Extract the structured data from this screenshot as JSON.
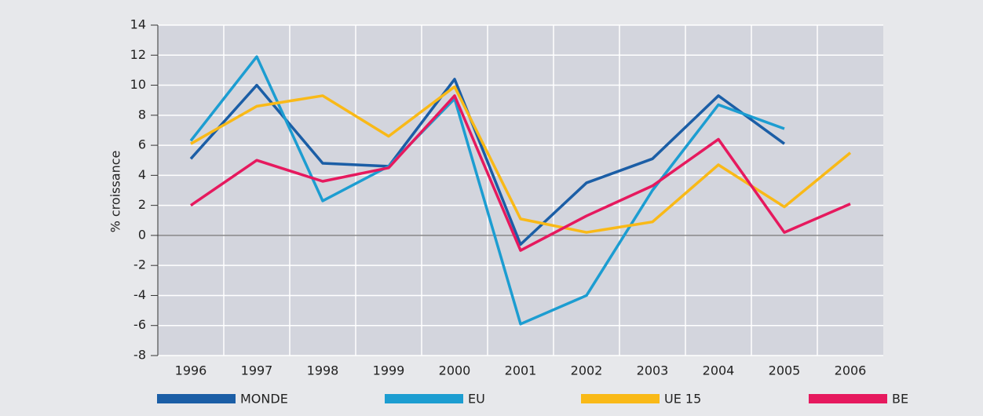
{
  "chart_data": {
    "type": "line",
    "y_label": "% croissance",
    "categories": [
      "1996",
      "1997",
      "1998",
      "1999",
      "2000",
      "2001",
      "2002",
      "2003",
      "2004",
      "2005",
      "2006"
    ],
    "series": [
      {
        "name": "MONDE",
        "color": "#1b5ea6",
        "values": [
          5.1,
          10,
          4.8,
          4.6,
          10.4,
          -0.6,
          3.5,
          5.1,
          9.3,
          6.1,
          null
        ]
      },
      {
        "name": "EU",
        "color": "#1c9dd1",
        "values": [
          6.3,
          11.9,
          2.3,
          4.6,
          9.1,
          -5.9,
          -4.0,
          3.0,
          8.7,
          7.1,
          null
        ]
      },
      {
        "name": "UE 15",
        "color": "#f9b917",
        "values": [
          6.1,
          8.6,
          9.3,
          6.6,
          9.9,
          1.1,
          0.2,
          0.9,
          4.7,
          1.9,
          5.5
        ]
      },
      {
        "name": "BE",
        "color": "#e6195e",
        "values": [
          2.0,
          5.0,
          3.6,
          4.5,
          9.3,
          -1.0,
          1.3,
          3.3,
          6.4,
          0.2,
          2.1
        ]
      }
    ],
    "ylim": [
      -8,
      14
    ],
    "yticks": [
      -8,
      -6,
      -4,
      -2,
      0,
      2,
      4,
      6,
      8,
      10,
      12,
      14
    ],
    "grid": true
  }
}
